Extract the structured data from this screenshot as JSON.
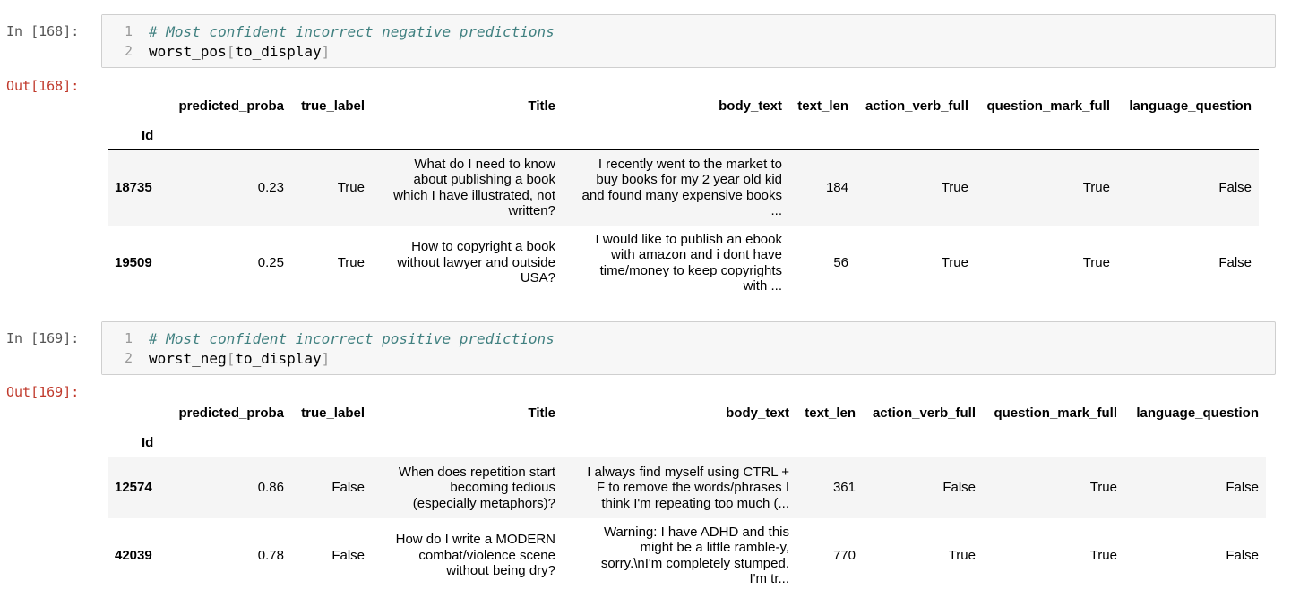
{
  "cells": [
    {
      "in_prompt": "In [168]:",
      "out_prompt": "Out[168]:",
      "code": {
        "line1_no": "1",
        "line2_no": "2",
        "line1": "# Most confident incorrect negative predictions",
        "line2_name": "worst_pos",
        "line2_open": "[",
        "line2_arg": "to_display",
        "line2_close": "]"
      },
      "table": {
        "columns": [
          "predicted_proba",
          "true_label",
          "Title",
          "body_text",
          "text_len",
          "action_verb_full",
          "question_mark_full",
          "language_question"
        ],
        "index_name": "Id",
        "rows": [
          {
            "id": "18735",
            "predicted_proba": "0.23",
            "true_label": "True",
            "title": [
              "What do I need to know",
              "about publishing a book",
              "which I have illustrated, not",
              "written?"
            ],
            "body_text": [
              "I recently went to the market to",
              "buy books for my 2 year old kid",
              "and found many expensive books",
              "..."
            ],
            "text_len": "184",
            "action_verb_full": "True",
            "question_mark_full": "True",
            "language_question": "False"
          },
          {
            "id": "19509",
            "predicted_proba": "0.25",
            "true_label": "True",
            "title": [
              "How to copyright a book",
              "without lawyer and outside",
              "USA?"
            ],
            "body_text": [
              "I would like to publish an ebook",
              "with amazon and i dont have",
              "time/money to keep copyrights",
              "with ..."
            ],
            "text_len": "56",
            "action_verb_full": "True",
            "question_mark_full": "True",
            "language_question": "False"
          }
        ]
      }
    },
    {
      "in_prompt": "In [169]:",
      "out_prompt": "Out[169]:",
      "code": {
        "line1_no": "1",
        "line2_no": "2",
        "line1": "# Most confident incorrect positive predictions",
        "line2_name": "worst_neg",
        "line2_open": "[",
        "line2_arg": "to_display",
        "line2_close": "]"
      },
      "table": {
        "columns": [
          "predicted_proba",
          "true_label",
          "Title",
          "body_text",
          "text_len",
          "action_verb_full",
          "question_mark_full",
          "language_question"
        ],
        "index_name": "Id",
        "rows": [
          {
            "id": "12574",
            "predicted_proba": "0.86",
            "true_label": "False",
            "title": [
              "When does repetition start",
              "becoming tedious",
              "(especially metaphors)?"
            ],
            "body_text": [
              "I always find myself using CTRL +",
              "F to remove the words/phrases I",
              "think I'm repeating too much (..."
            ],
            "text_len": "361",
            "action_verb_full": "False",
            "question_mark_full": "True",
            "language_question": "False"
          },
          {
            "id": "42039",
            "predicted_proba": "0.78",
            "true_label": "False",
            "title": [
              "How do I write a MODERN",
              "combat/violence scene",
              "without being dry?"
            ],
            "body_text": [
              "Warning: I have ADHD and this",
              "might be a little ramble-y,",
              "sorry.\\nI'm completely stumped.",
              "I'm tr..."
            ],
            "text_len": "770",
            "action_verb_full": "True",
            "question_mark_full": "True",
            "language_question": "False"
          }
        ]
      }
    }
  ]
}
